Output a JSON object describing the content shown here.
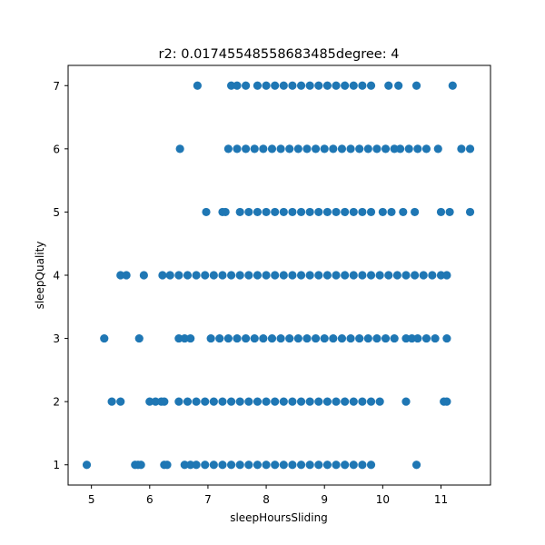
{
  "chart_data": {
    "type": "scatter",
    "title": "r2: 0.01745548558683485degree: 4",
    "xlabel": "sleepHoursSliding",
    "ylabel": "sleepQuality",
    "xlim": [
      4.6,
      11.85
    ],
    "ylim": [
      0.68,
      7.32
    ],
    "xticks": [
      5,
      6,
      7,
      8,
      9,
      10,
      11
    ],
    "yticks": [
      1,
      2,
      3,
      4,
      5,
      6,
      7
    ],
    "grid": false,
    "legend": "none",
    "point_color": "#1f77b4",
    "series": [
      {
        "x_range_by_y": [
          {
            "y": 1,
            "dense": [
              6.6,
              9.8
            ],
            "sparse": [
              4.92,
              5.75,
              5.8,
              5.85,
              6.25,
              6.3,
              10.58
            ]
          },
          {
            "y": 2,
            "dense": [
              6.6,
              9.9
            ],
            "sparse": [
              5.35,
              5.5,
              6.0,
              6.1,
              6.2,
              6.25,
              6.5,
              9.95,
              10.4,
              11.05,
              11.1
            ]
          },
          {
            "y": 3,
            "dense": [
              6.5,
              11.1
            ],
            "sparse": [
              5.22,
              5.82
            ]
          },
          {
            "y": 4,
            "dense": [
              5.5,
              11.1
            ],
            "sparse": [
              5.6,
              5.9,
              6.22
            ]
          },
          {
            "y": 5,
            "dense": [
              7.3,
              10.0
            ],
            "sparse": [
              6.97,
              7.25,
              10.15,
              10.35,
              10.55,
              11.0,
              11.15,
              11.5
            ]
          },
          {
            "y": 6,
            "dense": [
              7.3,
              10.2
            ],
            "sparse": [
              6.52,
              10.3,
              10.45,
              10.6,
              10.75,
              10.95,
              11.35,
              11.5
            ]
          },
          {
            "y": 7,
            "dense": [
              7.4,
              9.8
            ],
            "sparse": [
              6.82,
              10.1,
              10.27,
              10.58,
              11.2
            ]
          }
        ],
        "x": [
          4.92,
          5.75,
          5.8,
          5.85,
          6.25,
          6.3,
          6.6,
          6.7,
          6.8,
          6.95,
          7.1,
          7.25,
          7.4,
          7.55,
          7.7,
          7.85,
          8.0,
          8.15,
          8.3,
          8.45,
          8.6,
          8.75,
          8.9,
          9.05,
          9.2,
          9.35,
          9.5,
          9.65,
          9.8,
          10.58,
          5.35,
          5.5,
          6.0,
          6.1,
          6.2,
          6.25,
          6.5,
          6.65,
          6.8,
          6.95,
          7.1,
          7.25,
          7.4,
          7.55,
          7.7,
          7.85,
          8.0,
          8.15,
          8.3,
          8.45,
          8.6,
          8.75,
          8.9,
          9.05,
          9.2,
          9.35,
          9.5,
          9.65,
          9.8,
          9.95,
          10.4,
          11.05,
          11.1,
          5.22,
          5.82,
          6.5,
          6.6,
          6.7,
          7.05,
          7.2,
          7.35,
          7.5,
          7.65,
          7.8,
          7.95,
          8.1,
          8.25,
          8.4,
          8.55,
          8.7,
          8.85,
          9.0,
          9.15,
          9.3,
          9.45,
          9.6,
          9.75,
          9.9,
          10.05,
          10.2,
          10.4,
          10.5,
          10.6,
          10.75,
          10.9,
          11.1,
          5.5,
          5.6,
          5.9,
          6.22,
          6.35,
          6.5,
          6.65,
          6.8,
          6.95,
          7.1,
          7.25,
          7.4,
          7.55,
          7.7,
          7.85,
          8.0,
          8.15,
          8.3,
          8.45,
          8.6,
          8.75,
          8.9,
          9.05,
          9.2,
          9.35,
          9.5,
          9.65,
          9.8,
          9.95,
          10.1,
          10.25,
          10.4,
          10.55,
          10.7,
          10.85,
          11.0,
          11.1,
          6.97,
          7.25,
          7.3,
          7.55,
          7.7,
          7.85,
          8.0,
          8.15,
          8.3,
          8.45,
          8.6,
          8.75,
          8.9,
          9.05,
          9.2,
          9.35,
          9.5,
          9.65,
          9.8,
          10.0,
          10.15,
          10.35,
          10.55,
          11.0,
          11.15,
          11.5,
          6.52,
          7.35,
          7.5,
          7.65,
          7.8,
          7.95,
          8.1,
          8.25,
          8.4,
          8.55,
          8.7,
          8.85,
          9.0,
          9.15,
          9.3,
          9.45,
          9.6,
          9.75,
          9.9,
          10.05,
          10.2,
          10.3,
          10.45,
          10.6,
          10.75,
          10.95,
          11.35,
          11.5,
          6.82,
          7.4,
          7.5,
          7.65,
          7.85,
          8.0,
          8.15,
          8.3,
          8.45,
          8.6,
          8.75,
          8.9,
          9.05,
          9.2,
          9.35,
          9.5,
          9.65,
          9.8,
          10.1,
          10.27,
          10.58,
          11.2
        ],
        "y": [
          1,
          1,
          1,
          1,
          1,
          1,
          1,
          1,
          1,
          1,
          1,
          1,
          1,
          1,
          1,
          1,
          1,
          1,
          1,
          1,
          1,
          1,
          1,
          1,
          1,
          1,
          1,
          1,
          1,
          1,
          2,
          2,
          2,
          2,
          2,
          2,
          2,
          2,
          2,
          2,
          2,
          2,
          2,
          2,
          2,
          2,
          2,
          2,
          2,
          2,
          2,
          2,
          2,
          2,
          2,
          2,
          2,
          2,
          2,
          2,
          2,
          2,
          2,
          3,
          3,
          3,
          3,
          3,
          3,
          3,
          3,
          3,
          3,
          3,
          3,
          3,
          3,
          3,
          3,
          3,
          3,
          3,
          3,
          3,
          3,
          3,
          3,
          3,
          3,
          3,
          3,
          3,
          3,
          3,
          3,
          3,
          4,
          4,
          4,
          4,
          4,
          4,
          4,
          4,
          4,
          4,
          4,
          4,
          4,
          4,
          4,
          4,
          4,
          4,
          4,
          4,
          4,
          4,
          4,
          4,
          4,
          4,
          4,
          4,
          4,
          4,
          4,
          4,
          4,
          4,
          4,
          4,
          4,
          5,
          5,
          5,
          5,
          5,
          5,
          5,
          5,
          5,
          5,
          5,
          5,
          5,
          5,
          5,
          5,
          5,
          5,
          5,
          5,
          5,
          5,
          5,
          5,
          5,
          5,
          6,
          6,
          6,
          6,
          6,
          6,
          6,
          6,
          6,
          6,
          6,
          6,
          6,
          6,
          6,
          6,
          6,
          6,
          6,
          6,
          6,
          6,
          6,
          6,
          6,
          6,
          6,
          6,
          7,
          7,
          7,
          7,
          7,
          7,
          7,
          7,
          7,
          7,
          7,
          7,
          7,
          7,
          7,
          7,
          7,
          7,
          7,
          7,
          7,
          7
        ]
      }
    ]
  }
}
